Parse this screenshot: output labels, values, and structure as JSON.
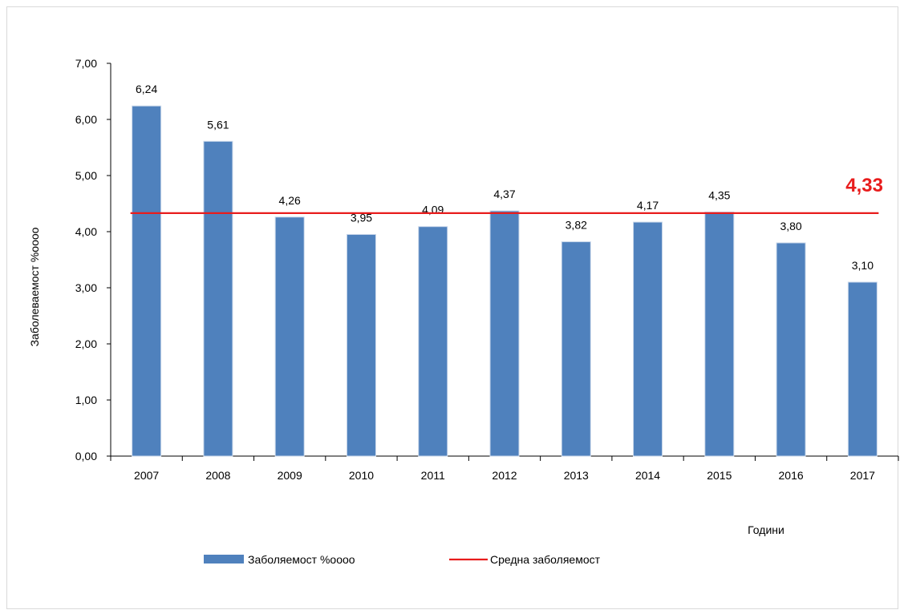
{
  "chart_data": {
    "type": "bar",
    "categories": [
      "2007",
      "2008",
      "2009",
      "2010",
      "2011",
      "2012",
      "2013",
      "2014",
      "2015",
      "2016",
      "2017"
    ],
    "series": [
      {
        "name": "Заболяемост %oooo",
        "values": [
          6.24,
          5.61,
          4.26,
          3.95,
          4.09,
          4.37,
          3.82,
          4.17,
          4.35,
          3.8,
          3.1
        ],
        "color": "#4f81bd"
      }
    ],
    "value_labels": [
      "6,24",
      "5,61",
      "4,26",
      "3,95",
      "4,09",
      "4,37",
      "3,82",
      "4,17",
      "4,35",
      "3,80",
      "3,10"
    ],
    "average_line": {
      "name": "Средна заболяемост",
      "value": 4.33,
      "label": "4,33",
      "color": "#e81c1c"
    },
    "ylabel": "Заболеваемост  %oooo",
    "xlabel": "Години",
    "ylim": [
      0,
      7
    ],
    "yticks": [
      0,
      1,
      2,
      3,
      4,
      5,
      6,
      7
    ],
    "ytick_labels": [
      "0,00",
      "1,00",
      "2,00",
      "3,00",
      "4,00",
      "5,00",
      "6,00",
      "7,00"
    ],
    "grid": false,
    "legend_position": "bottom"
  }
}
